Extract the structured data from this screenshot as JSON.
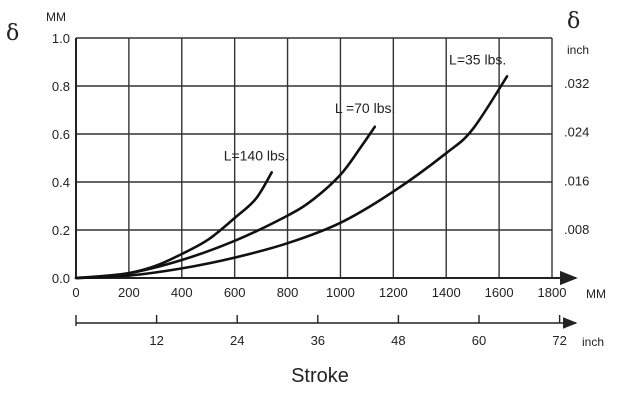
{
  "chart_data": {
    "type": "line",
    "xlabel": "Stroke",
    "x_unit_primary": "MM",
    "x_unit_secondary": "inch",
    "y_symbol_left": "δ",
    "y_unit_left": "MM",
    "y_symbol_right": "δ",
    "y_unit_right": "inch",
    "xlim": [
      0,
      1800
    ],
    "ylim": [
      0,
      1.0
    ],
    "grid": true,
    "x_ticks": [
      "0",
      "200",
      "400",
      "600",
      "800",
      "1000",
      "1200",
      "1400",
      "1600",
      "1800"
    ],
    "y_ticks_left": [
      "0.0",
      "0.2",
      "0.4",
      "0.6",
      "0.8",
      "1.0"
    ],
    "y_ticks_right": [
      {
        "value": 0.2032,
        "label": ".008"
      },
      {
        "value": 0.4064,
        "label": ".016"
      },
      {
        "value": 0.6096,
        "label": ".024"
      },
      {
        "value": 0.8128,
        "label": ".032"
      }
    ],
    "x_ticks_secondary": [
      {
        "value": 304.8,
        "label": "12"
      },
      {
        "value": 609.6,
        "label": "24"
      },
      {
        "value": 914.4,
        "label": "36"
      },
      {
        "value": 1219.2,
        "label": "48"
      },
      {
        "value": 1524,
        "label": "60"
      },
      {
        "value": 1828.8,
        "label": "72"
      }
    ],
    "series": [
      {
        "name": "L=140 lbs.",
        "x": [
          0,
          100,
          200,
          300,
          400,
          500,
          600,
          680,
          740
        ],
        "y": [
          0,
          0.005,
          0.02,
          0.05,
          0.1,
          0.16,
          0.25,
          0.33,
          0.44
        ]
      },
      {
        "name": "L =70 lbs.",
        "x": [
          0,
          200,
          400,
          600,
          800,
          900,
          1000,
          1080,
          1130
        ],
        "y": [
          0,
          0.02,
          0.075,
          0.155,
          0.26,
          0.33,
          0.43,
          0.55,
          0.63
        ]
      },
      {
        "name": "L=35 lbs.",
        "x": [
          0,
          200,
          400,
          600,
          800,
          1000,
          1200,
          1400,
          1500,
          1630
        ],
        "y": [
          0,
          0.01,
          0.04,
          0.085,
          0.145,
          0.23,
          0.36,
          0.52,
          0.62,
          0.84
        ]
      }
    ]
  }
}
